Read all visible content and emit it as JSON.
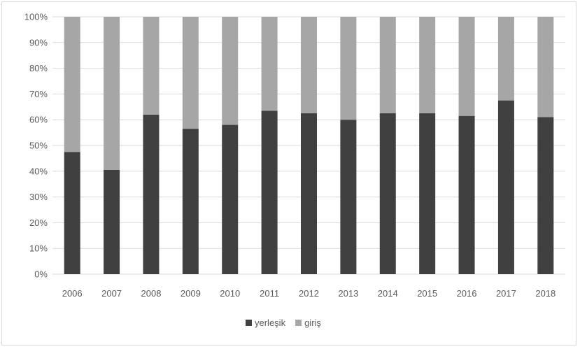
{
  "chart_data": {
    "type": "bar",
    "stacked": true,
    "categories": [
      "2006",
      "2007",
      "2008",
      "2009",
      "2010",
      "2011",
      "2012",
      "2013",
      "2014",
      "2015",
      "2016",
      "2017",
      "2018"
    ],
    "series": [
      {
        "name": "yerleşik",
        "color": "#404040",
        "values": [
          47.5,
          40.5,
          62,
          56.5,
          58,
          63.5,
          62.5,
          60,
          62.5,
          62.5,
          61.5,
          67.5,
          61
        ]
      },
      {
        "name": "giriş",
        "color": "#a6a6a6",
        "values": [
          52.5,
          59.5,
          38,
          43.5,
          42,
          36.5,
          37.5,
          40,
          37.5,
          37.5,
          38.5,
          32.5,
          39
        ]
      }
    ],
    "y_ticks": [
      "0%",
      "10%",
      "20%",
      "30%",
      "40%",
      "50%",
      "60%",
      "70%",
      "80%",
      "90%",
      "100%"
    ],
    "ylim": [
      0,
      100
    ],
    "grid": true,
    "legend_position": "bottom",
    "title": "",
    "xlabel": "",
    "ylabel": ""
  }
}
